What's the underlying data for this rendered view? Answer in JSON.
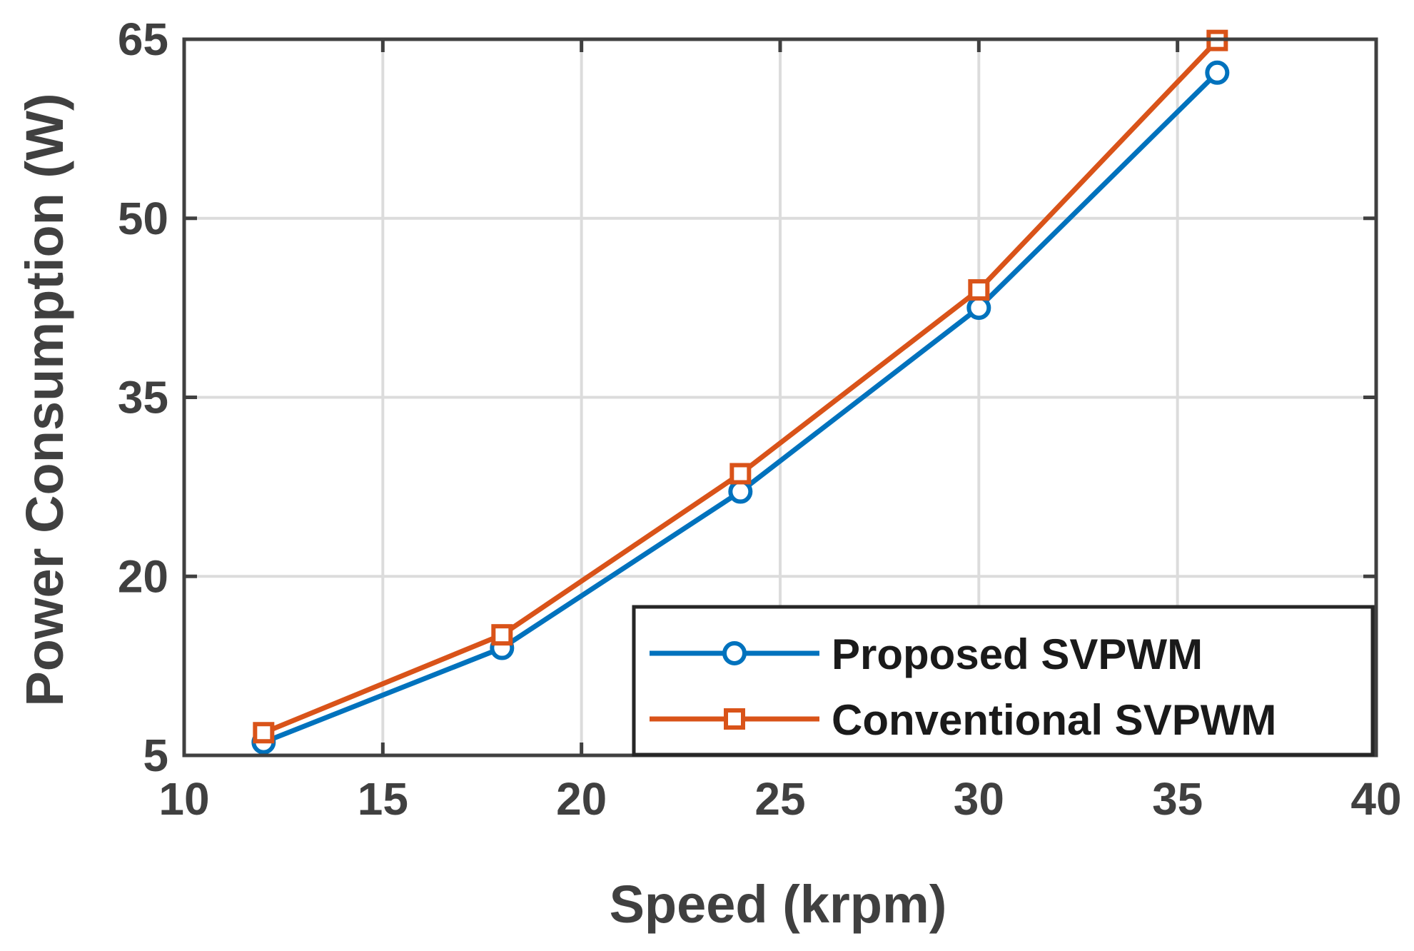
{
  "chart_data": {
    "type": "line",
    "title": "",
    "xlabel": "Speed (krpm)",
    "ylabel": "Power Consumption (W)",
    "xlim": [
      10,
      40
    ],
    "ylim": [
      5,
      65
    ],
    "xticks": [
      10,
      15,
      20,
      25,
      30,
      35,
      40
    ],
    "yticks": [
      5,
      20,
      35,
      50,
      65
    ],
    "grid": true,
    "legend_position": "bottom-right",
    "x": [
      12,
      18,
      24,
      30,
      36
    ],
    "series": [
      {
        "name": "Proposed SVPWM",
        "values": [
          6.1,
          14.0,
          27.1,
          42.5,
          62.2
        ],
        "color": "#0072BD",
        "marker": "circle"
      },
      {
        "name": "Conventional SVPWM",
        "values": [
          6.9,
          15.1,
          28.6,
          44.0,
          64.9
        ],
        "color": "#D95319",
        "marker": "square"
      }
    ]
  }
}
